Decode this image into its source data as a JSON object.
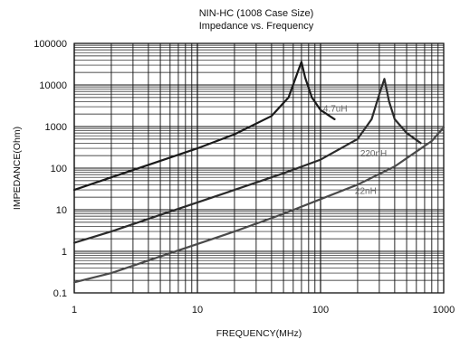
{
  "chart_data": {
    "type": "line",
    "title": "NIN-HC (1008 Case Size)",
    "subtitle": "Impedance vs. Frequency",
    "xlabel": "FREQUENCY(MHz)",
    "ylabel": "IMPEDANCE(Ohm)",
    "x_scale": "log",
    "y_scale": "log",
    "xlim": [
      1,
      1000
    ],
    "ylim": [
      0.1,
      100000
    ],
    "x_ticks": [
      "1",
      "10",
      "100",
      "1000"
    ],
    "y_ticks": [
      "100000",
      "10000",
      "1000",
      "100",
      "10",
      "1",
      "0.1"
    ],
    "grid": true,
    "series": [
      {
        "name": "4.7uH",
        "color": "#1a1a1a",
        "x": [
          1,
          2,
          5,
          10,
          20,
          40,
          55,
          65,
          70,
          75,
          85,
          100,
          130
        ],
        "y": [
          30,
          60,
          150,
          300,
          650,
          1800,
          5000,
          20000,
          36000,
          15000,
          5000,
          2500,
          1500
        ]
      },
      {
        "name": "220nH",
        "color": "#2a2a2a",
        "x": [
          1,
          2,
          5,
          10,
          20,
          50,
          100,
          200,
          260,
          300,
          330,
          360,
          400,
          500,
          650
        ],
        "y": [
          1.6,
          3,
          7.5,
          15,
          30,
          75,
          160,
          500,
          1500,
          6000,
          14000,
          4000,
          1500,
          700,
          400
        ]
      },
      {
        "name": "22nH",
        "color": "#4a4a4a",
        "x": [
          1,
          2,
          5,
          10,
          20,
          50,
          100,
          200,
          400,
          600,
          800,
          1000
        ],
        "y": [
          0.18,
          0.3,
          0.75,
          1.5,
          3,
          8,
          18,
          40,
          110,
          250,
          450,
          950
        ]
      }
    ]
  }
}
